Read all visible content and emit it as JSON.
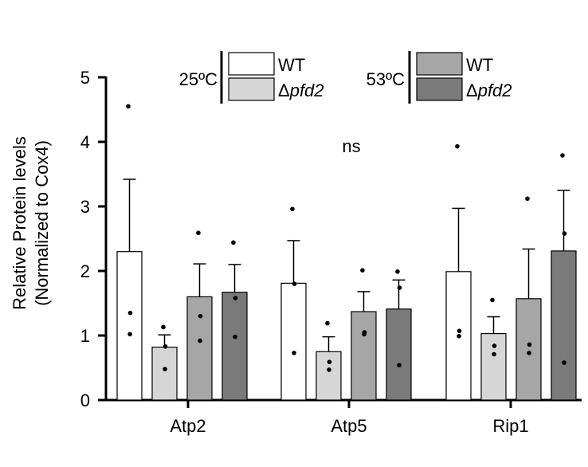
{
  "chart_data": {
    "type": "bar",
    "categories": [
      "Atp2",
      "Atp5",
      "Rip1"
    ],
    "ylabel_line1": "Relative Protein levels",
    "ylabel_line2": "(Normalized to Cox4)",
    "ylim": [
      0,
      5
    ],
    "yticks": [
      "0",
      "1",
      "2",
      "3",
      "4",
      "5"
    ],
    "grid": false,
    "legend_position": "top",
    "annotation": "ns",
    "legend_groups": [
      {
        "label": "25ºC",
        "entries": [
          0,
          1
        ]
      },
      {
        "label": "53ºC",
        "entries": [
          2,
          3
        ]
      }
    ],
    "series": [
      {
        "name": "WT",
        "name_italic": "",
        "color": "#ffffff",
        "values": [
          2.3,
          1.81,
          1.99
        ],
        "errors": [
          1.12,
          0.66,
          0.98
        ],
        "points": [
          [
            4.55,
            1.35,
            1.02
          ],
          [
            2.96,
            1.8,
            0.73
          ],
          [
            3.93,
            1.07,
            0.99
          ]
        ]
      },
      {
        "name": "Δ",
        "name_italic": "pfd2",
        "color": "#d6d6d6",
        "values": [
          0.82,
          0.75,
          1.03
        ],
        "errors": [
          0.19,
          0.23,
          0.26
        ],
        "points": [
          [
            1.13,
            0.83,
            0.48
          ],
          [
            1.19,
            0.59,
            0.47
          ],
          [
            1.55,
            0.84,
            0.71
          ]
        ]
      },
      {
        "name": "WT",
        "name_italic": "",
        "color": "#a6a6a6",
        "values": [
          1.6,
          1.37,
          1.57
        ],
        "errors": [
          0.51,
          0.31,
          0.77
        ],
        "points": [
          [
            2.59,
            1.3,
            0.92
          ],
          [
            2.01,
            1.05,
            1.02
          ],
          [
            3.12,
            0.86,
            0.73
          ]
        ]
      },
      {
        "name": "Δ",
        "name_italic": "pfd2",
        "color": "#7a7a7a",
        "values": [
          1.67,
          1.41,
          2.31
        ],
        "errors": [
          0.43,
          0.45,
          0.94
        ],
        "points": [
          [
            2.44,
            1.58,
            0.98
          ],
          [
            1.99,
            1.74,
            0.54
          ],
          [
            3.79,
            2.58,
            0.58
          ]
        ]
      }
    ]
  }
}
